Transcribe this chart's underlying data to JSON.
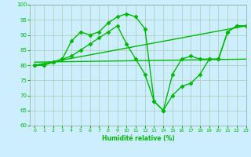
{
  "bg_color": "#cceeff",
  "grid_color": "#aaccaa",
  "line_color": "#00bb00",
  "ylim": [
    60,
    100
  ],
  "xlim": [
    -0.5,
    23
  ],
  "yticks": [
    60,
    65,
    70,
    75,
    80,
    85,
    90,
    95,
    100
  ],
  "xticks": [
    0,
    1,
    2,
    3,
    4,
    5,
    6,
    7,
    8,
    9,
    10,
    11,
    12,
    13,
    14,
    15,
    16,
    17,
    18,
    19,
    20,
    21,
    22,
    23
  ],
  "xlabel": "Humidité relative (%)",
  "lines": [
    {
      "x": [
        0,
        1,
        2,
        3,
        4,
        5,
        6,
        7,
        8,
        9,
        10,
        11,
        12,
        13,
        14,
        15,
        16,
        17,
        18,
        19,
        20,
        21,
        22,
        23
      ],
      "y": [
        80,
        80,
        81,
        82,
        88,
        91,
        90,
        91,
        94,
        96,
        97,
        96,
        92,
        68,
        65,
        77,
        82,
        83,
        82,
        82,
        82,
        91,
        93,
        93
      ],
      "marker": "D",
      "markersize": 2.5,
      "linewidth": 1.0
    },
    {
      "x": [
        0,
        23
      ],
      "y": [
        80,
        93
      ],
      "marker": null,
      "markersize": 0,
      "linewidth": 1.0
    },
    {
      "x": [
        0,
        23
      ],
      "y": [
        81,
        82
      ],
      "marker": null,
      "markersize": 0,
      "linewidth": 1.0
    },
    {
      "x": [
        0,
        1,
        2,
        3,
        4,
        5,
        6,
        7,
        8,
        9,
        10,
        11,
        12,
        13,
        14,
        15,
        16,
        17,
        18,
        19,
        20,
        21,
        22,
        23
      ],
      "y": [
        80,
        80,
        81,
        82,
        83,
        85,
        87,
        89,
        91,
        93,
        87,
        82,
        77,
        68,
        65,
        70,
        73,
        74,
        77,
        82,
        82,
        91,
        93,
        93
      ],
      "marker": "D",
      "markersize": 2.5,
      "linewidth": 1.0
    }
  ]
}
